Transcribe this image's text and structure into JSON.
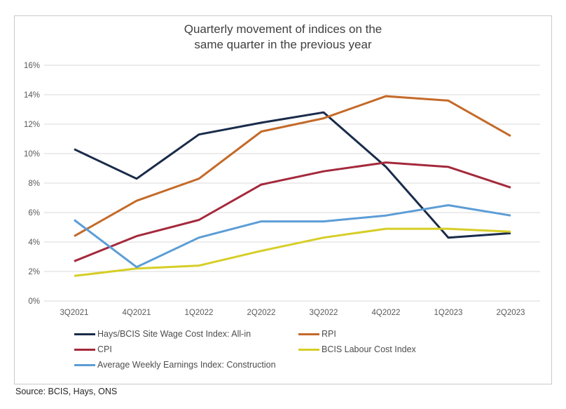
{
  "title": "Quarterly movement of indices on the same quarter in the previous year",
  "source": "Source: BCIS, Hays, ONS",
  "chart_data": {
    "type": "line",
    "categories": [
      "3Q2021",
      "4Q2021",
      "1Q2022",
      "2Q2022",
      "3Q2022",
      "4Q2022",
      "1Q2023",
      "2Q2023"
    ],
    "series": [
      {
        "name": "Hays/BCIS Site Wage Cost Index: All-in",
        "color": "#1a2b4a",
        "values": [
          10.3,
          8.3,
          11.3,
          12.1,
          12.8,
          9.1,
          4.3,
          4.6
        ]
      },
      {
        "name": "RPI",
        "color": "#c46a29",
        "values": [
          4.4,
          6.8,
          8.3,
          11.5,
          12.4,
          13.9,
          13.6,
          11.2
        ]
      },
      {
        "name": "CPI",
        "color": "#a4293c",
        "values": [
          2.7,
          4.4,
          5.5,
          7.9,
          8.8,
          9.4,
          9.1,
          7.7
        ]
      },
      {
        "name": "BCIS Labour Cost Index",
        "color": "#d6ce26",
        "values": [
          1.7,
          2.2,
          2.4,
          3.4,
          4.3,
          4.9,
          4.9,
          4.7
        ]
      },
      {
        "name": "Average Weekly Earnings Index: Construction",
        "color": "#5b9dd6",
        "values": [
          5.5,
          2.3,
          4.3,
          5.4,
          5.4,
          5.8,
          6.5,
          5.8
        ]
      }
    ],
    "title": "Quarterly movement of indices on the same quarter in the previous year",
    "xlabel": "",
    "ylabel": "",
    "ylim": [
      0,
      16
    ],
    "ytick_step": 2,
    "ytick_suffix": "%",
    "grid": true,
    "legend_position": "bottom"
  }
}
